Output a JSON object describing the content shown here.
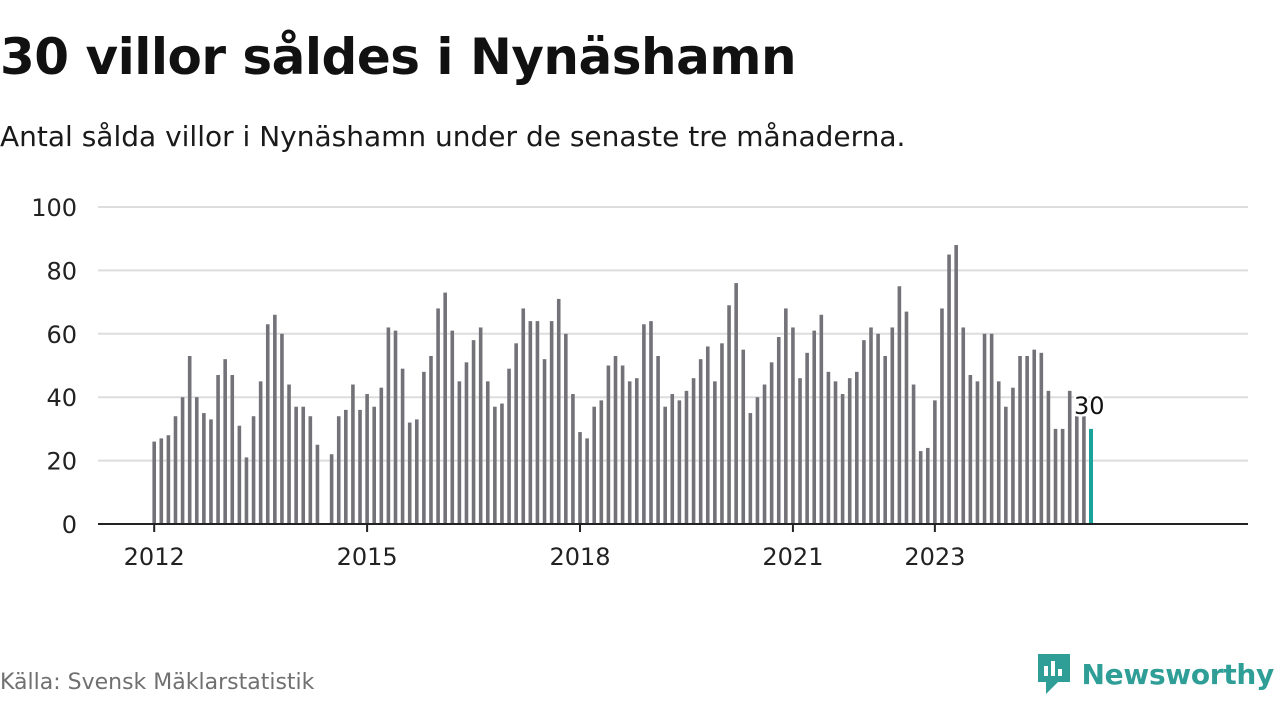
{
  "title": "30 villor såldes i Nynäshamn",
  "subtitle": "Antal sålda villor i Nynäshamn under de senaste tre månaderna.",
  "source": "Källa: Svensk Mäklarstatistik",
  "brand": {
    "name": "Newsworthy",
    "icon": "newsworthy-logo-icon",
    "color": "#2e9e97"
  },
  "colors": {
    "bar": "#737278",
    "highlight": "#1aa39a",
    "grid": "#dddddd",
    "axis": "#222222"
  },
  "chart_data": {
    "type": "bar",
    "title": "30 villor såldes i Nynäshamn",
    "subtitle": "Antal sålda villor i Nynäshamn under de senaste tre månaderna.",
    "xlabel": "",
    "ylabel": "",
    "ylim": [
      0,
      100
    ],
    "yticks": [
      0,
      20,
      40,
      60,
      80,
      100
    ],
    "grid": true,
    "xtick_labels": [
      {
        "label": "2012",
        "index": 0
      },
      {
        "label": "2015",
        "index": 30
      },
      {
        "label": "2018",
        "index": 60
      },
      {
        "label": "2021",
        "index": 90
      },
      {
        "label": "2023",
        "index": 110
      }
    ],
    "values": [
      26,
      27,
      28,
      34,
      40,
      53,
      40,
      35,
      33,
      47,
      52,
      47,
      31,
      21,
      34,
      45,
      63,
      66,
      60,
      44,
      37,
      37,
      34,
      25,
      null,
      22,
      34,
      36,
      44,
      36,
      41,
      37,
      43,
      62,
      61,
      49,
      32,
      33,
      48,
      53,
      68,
      73,
      61,
      45,
      51,
      58,
      62,
      45,
      37,
      38,
      49,
      57,
      68,
      64,
      64,
      52,
      64,
      71,
      60,
      41,
      29,
      27,
      37,
      39,
      50,
      53,
      50,
      45,
      46,
      63,
      64,
      53,
      37,
      41,
      39,
      42,
      46,
      52,
      56,
      45,
      57,
      69,
      76,
      55,
      35,
      40,
      44,
      51,
      59,
      68,
      62,
      46,
      54,
      61,
      66,
      48,
      45,
      41,
      46,
      48,
      58,
      62,
      60,
      53,
      62,
      75,
      67,
      44,
      23,
      24,
      39,
      68,
      85,
      88,
      62,
      47,
      45,
      60,
      60,
      45,
      37,
      43,
      53,
      53,
      55,
      54,
      42,
      30,
      30,
      42,
      34,
      34,
      30
    ],
    "highlight_index": 132,
    "highlight_label": "30"
  }
}
